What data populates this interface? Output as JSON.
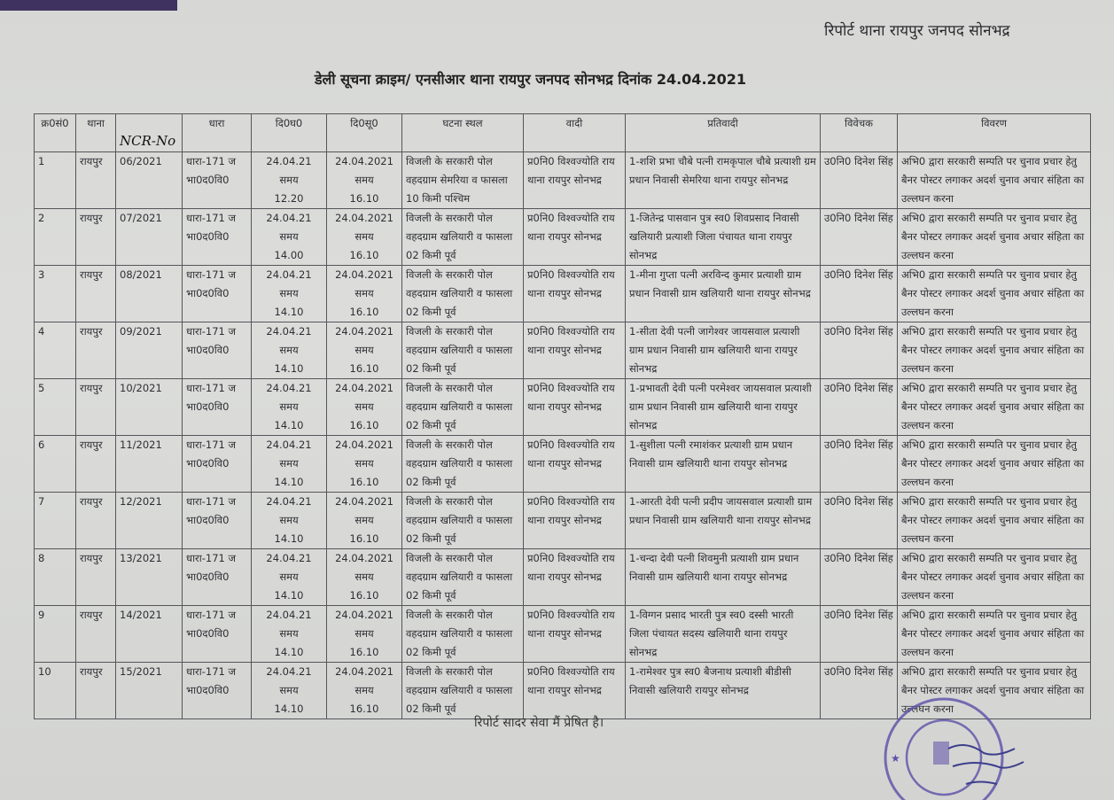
{
  "header_right": "रिपोर्ट थाना रायपुर जनपद सोनभद्र",
  "title": "डेली सूचना क्राइम/ एनसीआर थाना रायपुर जनपद सोनभद्र दिनांक 24.04.2021",
  "handwritten_label": "NCR-No",
  "columns": [
    "क्र0सं0",
    "थाना",
    "",
    "धारा",
    "दि0घ0",
    "दि0सू0",
    "घटना स्थल",
    "वादी",
    "प्रतिवादी",
    "विवेचक",
    "विवरण"
  ],
  "rows": [
    {
      "sn": "1",
      "thana": "रायपुर",
      "ncr": "06/2021",
      "dhara": "धारा-171 ज भा0द0वि0",
      "ghatna": [
        "24.04.21",
        "समय",
        "12.20"
      ],
      "suchna": [
        "24.04.2021",
        "समय",
        "16.10"
      ],
      "sthal": "विजली के सरकारी पोल वहदग्राम सेमरिया व फासला 10 किमी पश्चिम",
      "vadi": "प्र0नि0 विश्वज्योति राय थाना रायपुर सोनभद्र",
      "prativadi": "1-शशि प्रभा चौबे पत्नी रामकृपाल चौबे प्रत्याशी ग्रम प्रधान निवासी सेमरिया थाना रायपुर सोनभद्र",
      "vivechak": "उ0नि0 दिनेश सिंह",
      "vivaran": "अभि0 द्वारा सरकारी सम्पति पर चुनाव प्रचार हेतु बैनर पोस्टर लगाकर अदर्श चुनाव अचार संहिता का उल्लघन करना"
    },
    {
      "sn": "2",
      "thana": "रायपुर",
      "ncr": "07/2021",
      "dhara": "धारा-171 ज भा0द0वि0",
      "ghatna": [
        "24.04.21",
        "समय",
        "14.00"
      ],
      "suchna": [
        "24.04.2021",
        "समय",
        "16.10"
      ],
      "sthal": "विजली के सरकारी पोल वहदग्राम खलियारी व फासला 02 किमी पूर्व",
      "vadi": "प्र0नि0 विश्वज्योति राय थाना रायपुर सोनभद्र",
      "prativadi": "1-जितेन्द्र पासवान पुत्र स्व0 शिवप्रसाद निवासी खलियारी प्रत्याशी जिला पंचायत थाना रायपुर सोनभद्र",
      "vivechak": "उ0नि0 दिनेश सिंह",
      "vivaran": "अभि0 द्वारा सरकारी सम्पति पर चुनाव प्रचार हेतु बैनर पोस्टर लगाकर अदर्श चुनाव अचार संहिता का उल्लघन करना"
    },
    {
      "sn": "3",
      "thana": "रायपुर",
      "ncr": "08/2021",
      "dhara": "धारा-171 ज भा0द0वि0",
      "ghatna": [
        "24.04.21",
        "समय",
        "14.10"
      ],
      "suchna": [
        "24.04.2021",
        "समय",
        "16.10"
      ],
      "sthal": "विजली के सरकारी पोल वहदग्राम खलियारी व फासला 02 किमी पूर्व",
      "vadi": "प्र0नि0 विश्वज्योति राय थाना रायपुर सोनभद्र",
      "prativadi": "1-मीना गुप्ता पत्नी अरविन्द कुमार प्रत्याशी ग्राम प्रधान निवासी ग्राम खलियारी थाना रायपुर सोनभद्र",
      "vivechak": "उ0नि0 दिनेश सिंह",
      "vivaran": "अभि0 द्वारा सरकारी सम्पति पर चुनाव प्रचार हेतु बैनर पोस्टर लगाकर अदर्श चुनाव अचार संहिता का उल्लघन करना"
    },
    {
      "sn": "4",
      "thana": "रायपुर",
      "ncr": "09/2021",
      "dhara": "धारा-171 ज भा0द0वि0",
      "ghatna": [
        "24.04.21",
        "समय",
        "14.10"
      ],
      "suchna": [
        "24.04.2021",
        "समय",
        "16.10"
      ],
      "sthal": "विजली के सरकारी पोल वहदग्राम खलियारी व फासला 02 किमी पूर्व",
      "vadi": "प्र0नि0 विश्वज्योति राय थाना रायपुर सोनभद्र",
      "prativadi": "1-सीता देवी पत्नी जागेश्वर जायसवाल प्रत्याशी ग्राम प्रधान निवासी ग्राम खलियारी थाना रायपुर सोनभद्र",
      "vivechak": "उ0नि0 दिनेश सिंह",
      "vivaran": "अभि0 द्वारा सरकारी सम्पति पर चुनाव प्रचार हेतु बैनर पोस्टर लगाकर अदर्श चुनाव अचार संहिता का उल्लघन करना"
    },
    {
      "sn": "5",
      "thana": "रायपुर",
      "ncr": "10/2021",
      "dhara": "धारा-171 ज भा0द0वि0",
      "ghatna": [
        "24.04.21",
        "समय",
        "14.10"
      ],
      "suchna": [
        "24.04.2021",
        "समय",
        "16.10"
      ],
      "sthal": "विजली के सरकारी पोल वहदग्राम खलियारी व फासला 02 किमी पूर्व",
      "vadi": "प्र0नि0 विश्वज्योति राय थाना रायपुर सोनभद्र",
      "prativadi": "1-प्रभावती देवी पत्नी परमेश्वर जायसवाल प्रत्याशी ग्राम प्रधान निवासी ग्राम खलियारी थाना रायपुर सोनभद्र",
      "vivechak": "उ0नि0 दिनेश सिंह",
      "vivaran": "अभि0 द्वारा सरकारी सम्पति पर चुनाव प्रचार हेतु बैनर पोस्टर लगाकर अदर्श चुनाव अचार संहिता का उल्लघन करना"
    },
    {
      "sn": "6",
      "thana": "रायपुर",
      "ncr": "11/2021",
      "dhara": "धारा-171 ज भा0द0वि0",
      "ghatna": [
        "24.04.21",
        "समय",
        "14.10"
      ],
      "suchna": [
        "24.04.2021",
        "समय",
        "16.10"
      ],
      "sthal": "विजली के सरकारी पोल वहदग्राम खलियारी व फासला 02 किमी पूर्व",
      "vadi": "प्र0नि0 विश्वज्योति राय थाना रायपुर सोनभद्र",
      "prativadi": "1-सुशीला पत्नी रमाशंकर प्रत्याशी ग्राम प्रधान निवासी ग्राम खलियारी थाना रायपुर सोनभद्र",
      "vivechak": "उ0नि0 दिनेश सिंह",
      "vivaran": "अभि0 द्वारा सरकारी सम्पति पर चुनाव प्रचार हेतु बैनर पोस्टर लगाकर अदर्श चुनाव अचार संहिता का उल्लघन करना"
    },
    {
      "sn": "7",
      "thana": "रायपुर",
      "ncr": "12/2021",
      "dhara": "धारा-171 ज भा0द0वि0",
      "ghatna": [
        "24.04.21",
        "समय",
        "14.10"
      ],
      "suchna": [
        "24.04.2021",
        "समय",
        "16.10"
      ],
      "sthal": "विजली के सरकारी पोल वहदग्राम खलियारी व फासला 02 किमी पूर्व",
      "vadi": "प्र0नि0 विश्वज्योति राय थाना रायपुर सोनभद्र",
      "prativadi": "1-आरती देवी पत्नी प्रदीप जायसवाल प्रत्याशी ग्राम प्रधान निवासी ग्राम खलियारी थाना रायपुर सोनभद्र",
      "vivechak": "उ0नि0 दिनेश सिंह",
      "vivaran": "अभि0 द्वारा सरकारी सम्पति पर चुनाव प्रचार हेतु बैनर पोस्टर लगाकर अदर्श चुनाव अचार संहिता का उल्लघन करना"
    },
    {
      "sn": "8",
      "thana": "रायपुर",
      "ncr": "13/2021",
      "dhara": "धारा-171 ज भा0द0वि0",
      "ghatna": [
        "24.04.21",
        "समय",
        "14.10"
      ],
      "suchna": [
        "24.04.2021",
        "समय",
        "16.10"
      ],
      "sthal": "विजली के सरकारी पोल वहदग्राम खलियारी व फासला 02 किमी पूर्व",
      "vadi": "प्र0नि0 विश्वज्योति राय थाना रायपुर सोनभद्र",
      "prativadi": "1-चन्दा देवी पत्नी शिवमुनी प्रत्याशी ग्राम प्रधान निवासी ग्राम खलियारी थाना रायपुर सोनभद्र",
      "vivechak": "उ0नि0 दिनेश सिंह",
      "vivaran": "अभि0 द्वारा सरकारी सम्पति पर चुनाव प्रचार हेतु बैनर पोस्टर लगाकर अदर्श चुनाव अचार संहिता का उल्लघन करना"
    },
    {
      "sn": "9",
      "thana": "रायपुर",
      "ncr": "14/2021",
      "dhara": "धारा-171 ज भा0द0वि0",
      "ghatna": [
        "24.04.21",
        "समय",
        "14.10"
      ],
      "suchna": [
        "24.04.2021",
        "समय",
        "16.10"
      ],
      "sthal": "विजली के सरकारी पोल वहदग्राम खलियारी व फासला 02 किमी पूर्व",
      "vadi": "प्र0नि0 विश्वज्योति राय थाना रायपुर सोनभद्र",
      "prativadi": "1-विग्गन प्रसाद भारती पुत्र स्व0 दस्सी भारती जिला पंचायत सदस्य खलियारी थाना रायपुर सोनभद्र",
      "vivechak": "उ0नि0 दिनेश सिंह",
      "vivaran": "अभि0 द्वारा सरकारी सम्पति पर चुनाव प्रचार हेतु बैनर पोस्टर लगाकर अदर्श चुनाव अचार संहिता का उल्लघन करना"
    },
    {
      "sn": "10",
      "thana": "रायपुर",
      "ncr": "15/2021",
      "dhara": "धारा-171 ज भा0द0वि0",
      "ghatna": [
        "24.04.21",
        "समय",
        "14.10"
      ],
      "suchna": [
        "24.04.2021",
        "समय",
        "16.10"
      ],
      "sthal": "विजली के सरकारी पोल वहदग्राम खलियारी व फासला 02 किमी पूर्व",
      "vadi": "प्र0नि0 विश्वज्योति राय थाना रायपुर सोनभद्र",
      "prativadi": "1-रामेश्वर पुत्र स्व0 बैजनाथ प्रत्याशी बीडीसी निवासी खलियारी रायपुर सोनभद्र",
      "vivechak": "उ0नि0 दिनेश सिंह",
      "vivaran": "अभि0 द्वारा सरकारी सम्पति पर चुनाव प्रचार हेतु बैनर पोस्टर लगाकर अदर्श चुनाव अचार संहिता का उल्लघन करना"
    }
  ],
  "footer": "रिपोर्ट सादर सेवा मैं प्रेषित है।",
  "stamp": {
    "text": "थाना रायपुर",
    "color": "#5b4fa8"
  }
}
